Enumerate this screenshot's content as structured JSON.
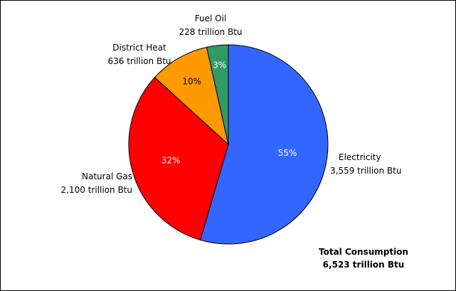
{
  "chart_data": {
    "type": "pie",
    "unit": "trillion Btu",
    "slices": [
      {
        "name": "Electricity",
        "value": 3559,
        "value_label": "3,559 trillion Btu",
        "percent_label": "55%",
        "color": "#3366ff"
      },
      {
        "name": "Natural Gas",
        "value": 2100,
        "value_label": "2,100 trillion Btu",
        "percent_label": "32%",
        "color": "#ff0000"
      },
      {
        "name": "District Heat",
        "value": 636,
        "value_label": "636 trillion Btu",
        "percent_label": "10%",
        "color": "#ff9900"
      },
      {
        "name": "Fuel Oil",
        "value": 228,
        "value_label": "228 trillion Btu",
        "percent_label": "3%",
        "color": "#339966"
      }
    ],
    "start_angle": "12 o'clock",
    "direction": "clockwise",
    "total": {
      "label": "Total Consumption",
      "value": 6523,
      "value_label": "6,523 trillion Btu"
    }
  }
}
